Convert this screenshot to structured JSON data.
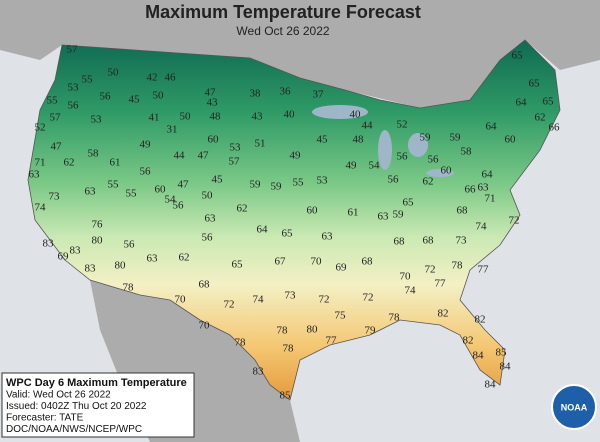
{
  "header": {
    "title": "Maximum Temperature Forecast",
    "subtitle": "Wed Oct 26 2022"
  },
  "temperatures": [
    57,
    55,
    50,
    42,
    46,
    53,
    56,
    45,
    50,
    47,
    38,
    36,
    37,
    65,
    65,
    64,
    65,
    62,
    66,
    55,
    56,
    53,
    41,
    50,
    48,
    43,
    43,
    40,
    40,
    44,
    52,
    52,
    57,
    31,
    60,
    51,
    49,
    45,
    48,
    59,
    64,
    60,
    59,
    58,
    47,
    58,
    49,
    44,
    47,
    53,
    57,
    49,
    54,
    56,
    56,
    62,
    60,
    56,
    71,
    62,
    63,
    61,
    55,
    56,
    60,
    47,
    45,
    59,
    59,
    55,
    53,
    73,
    63,
    55,
    54,
    50,
    62,
    60,
    61,
    63,
    59,
    66,
    65,
    68,
    74,
    76,
    56,
    63,
    64,
    65,
    63,
    68,
    68,
    73,
    74,
    72,
    71,
    64,
    63,
    80,
    56,
    56,
    83,
    83,
    69,
    83,
    80,
    63,
    62,
    65,
    67,
    70,
    69,
    68,
    70,
    72,
    78,
    77,
    78,
    68,
    74,
    77,
    74,
    73,
    72,
    72,
    70,
    72,
    75,
    78,
    82,
    82,
    70,
    78,
    80,
    79,
    78,
    77,
    82,
    78,
    84,
    85,
    84,
    83,
    84,
    85
  ],
  "info_box": {
    "lines": [
      "WPC Day 6 Maximum Temperature",
      "Valid: Wed Oct 26 2022",
      "Issued: 0402Z Thu Oct 20 2022",
      "Forecaster: TATE",
      "DOC/NOAA/NWS/NCEP/WPC"
    ]
  },
  "logo": {
    "text": "NOAA"
  }
}
